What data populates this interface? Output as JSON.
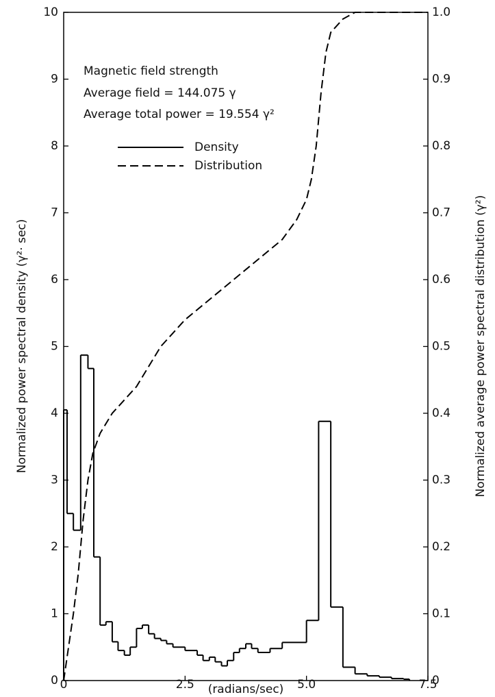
{
  "chart_data": {
    "type": "step",
    "annotations": [
      "Magnetic field strength",
      "Average field = 144.075 γ",
      "Average total power = 19.554 γ²"
    ],
    "xlabel": "(radians/sec)",
    "ylabel": "Normalized power spectral density (γ²· sec)",
    "y2label": "Normalized average power spectral distribution (γ²)",
    "xlim": [
      0,
      7.5
    ],
    "xticks": [
      0,
      2.5,
      {
        "value": 5,
        "label": "5.0"
      },
      7.5
    ],
    "ylim": [
      0,
      10
    ],
    "yticks": [
      0,
      1,
      2,
      3,
      4,
      5,
      6,
      7,
      8,
      9,
      10
    ],
    "y2lim": [
      0,
      1
    ],
    "y2ticks": [
      0,
      0.1,
      0.2,
      0.3,
      0.4,
      0.5,
      0.6,
      0.7,
      0.8,
      0.9,
      {
        "value": 1,
        "label": "1.0"
      }
    ],
    "series": [
      {
        "name": "Density",
        "color": "#000000",
        "line_style": "solid",
        "bins": [
          0,
          0.07,
          0.2,
          0.35,
          0.5,
          0.62,
          0.75,
          0.87,
          1.0,
          1.12,
          1.25,
          1.37,
          1.5,
          1.62,
          1.75,
          1.87,
          2.0,
          2.12,
          2.25,
          2.5,
          2.75,
          2.87,
          3.0,
          3.12,
          3.25,
          3.37,
          3.5,
          3.62,
          3.75,
          3.87,
          4.0,
          4.25,
          4.5,
          5.0,
          5.25,
          5.5,
          5.75,
          6.0,
          6.25,
          6.5,
          6.75,
          7.0,
          7.12
        ],
        "values": [
          4.05,
          2.5,
          2.25,
          4.87,
          4.67,
          1.85,
          0.83,
          0.88,
          0.58,
          0.45,
          0.38,
          0.5,
          0.78,
          0.83,
          0.7,
          0.63,
          0.6,
          0.55,
          0.5,
          0.45,
          0.38,
          0.3,
          0.35,
          0.28,
          0.22,
          0.3,
          0.42,
          0.48,
          0.55,
          0.48,
          0.42,
          0.48,
          0.57,
          0.9,
          3.88,
          1.1,
          0.2,
          0.1,
          0.07,
          0.05,
          0.03,
          0.02
        ]
      },
      {
        "name": "Distribution",
        "color": "#000000",
        "line_style": "dashed",
        "axis": "y2",
        "x": [
          0,
          0.1,
          0.2,
          0.3,
          0.4,
          0.5,
          0.6,
          0.75,
          1.0,
          1.25,
          1.5,
          1.75,
          2.0,
          2.5,
          3.0,
          3.5,
          4.0,
          4.5,
          4.8,
          5.0,
          5.1,
          5.2,
          5.3,
          5.4,
          5.5,
          5.75,
          6.0,
          7.5
        ],
        "values": [
          0,
          0.05,
          0.1,
          0.16,
          0.24,
          0.3,
          0.34,
          0.37,
          0.4,
          0.42,
          0.44,
          0.47,
          0.5,
          0.54,
          0.57,
          0.6,
          0.63,
          0.66,
          0.69,
          0.72,
          0.75,
          0.8,
          0.88,
          0.94,
          0.97,
          0.99,
          1.0,
          1.0
        ]
      }
    ]
  }
}
